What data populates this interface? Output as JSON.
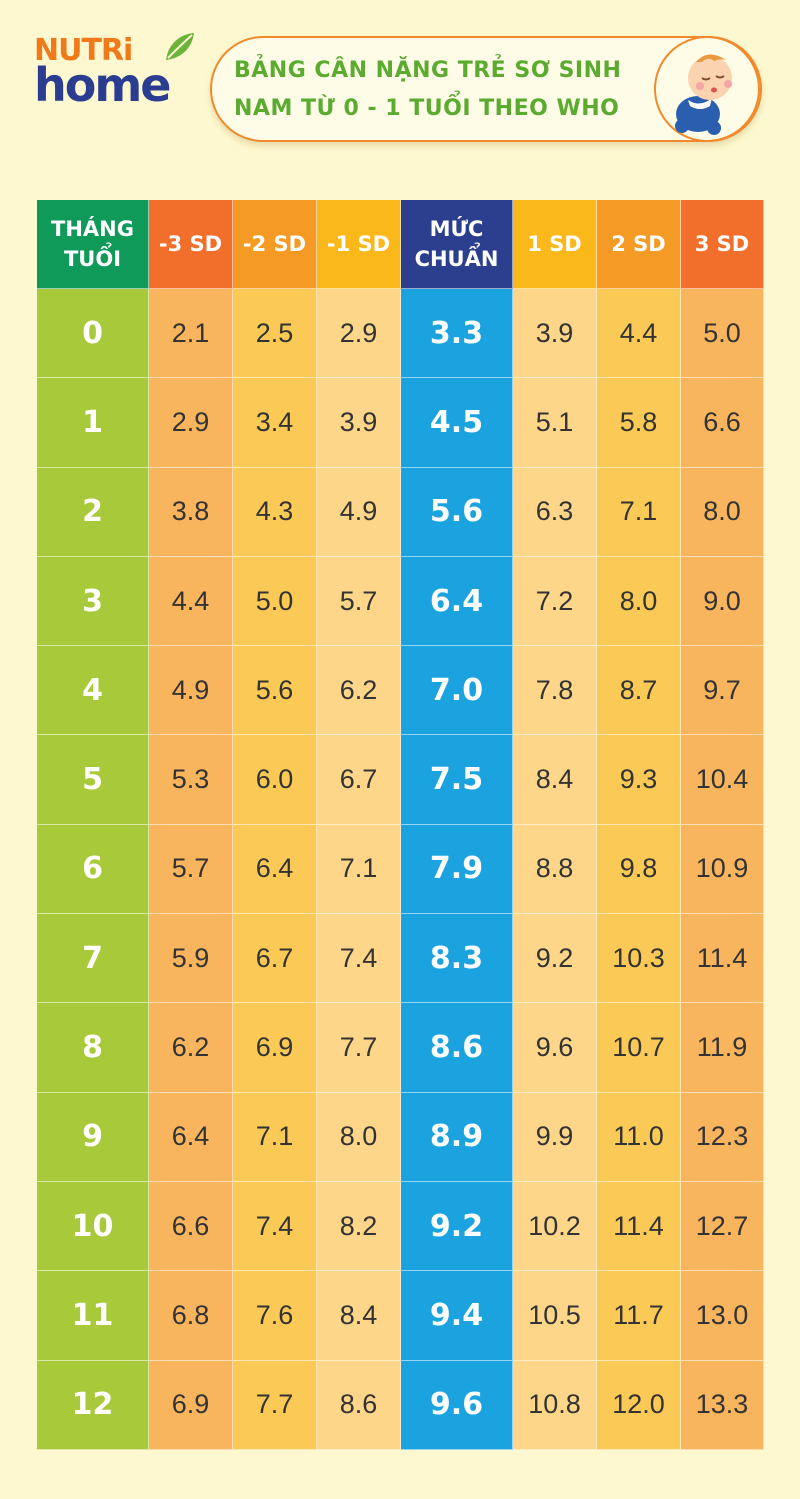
{
  "brand": {
    "line1": "NUTRi",
    "line2": "home",
    "colors": {
      "nutri": "#f07a1a",
      "home": "#2a3d91",
      "leaf": "#6bb33a"
    }
  },
  "title": {
    "line1": "BẢNG CÂN NẶNG TRẺ SƠ SINH",
    "line2": "NAM TỪ 0 - 1 TUỔI THEO WHO",
    "illustration": "sleeping-baby-icon"
  },
  "table": {
    "headers": [
      {
        "label": "THÁNG\nTUỔI",
        "color": "#0f9a5a"
      },
      {
        "label": "-3 SD",
        "color": "#f26f2b"
      },
      {
        "label": "-2 SD",
        "color": "#f59a24"
      },
      {
        "label": "-1 SD",
        "color": "#fbb81a"
      },
      {
        "label": "MỨC\nCHUẨN",
        "color": "#2c3f8f"
      },
      {
        "label": "1 SD",
        "color": "#fbb81a"
      },
      {
        "label": "2 SD",
        "color": "#f59a24"
      },
      {
        "label": "3 SD",
        "color": "#f26f2b"
      }
    ],
    "rows": [
      [
        "0",
        "2.1",
        "2.5",
        "2.9",
        "3.3",
        "3.9",
        "4.4",
        "5.0"
      ],
      [
        "1",
        "2.9",
        "3.4",
        "3.9",
        "4.5",
        "5.1",
        "5.8",
        "6.6"
      ],
      [
        "2",
        "3.8",
        "4.3",
        "4.9",
        "5.6",
        "6.3",
        "7.1",
        "8.0"
      ],
      [
        "3",
        "4.4",
        "5.0",
        "5.7",
        "6.4",
        "7.2",
        "8.0",
        "9.0"
      ],
      [
        "4",
        "4.9",
        "5.6",
        "6.2",
        "7.0",
        "7.8",
        "8.7",
        "9.7"
      ],
      [
        "5",
        "5.3",
        "6.0",
        "6.7",
        "7.5",
        "8.4",
        "9.3",
        "10.4"
      ],
      [
        "6",
        "5.7",
        "6.4",
        "7.1",
        "7.9",
        "8.8",
        "9.8",
        "10.9"
      ],
      [
        "7",
        "5.9",
        "6.7",
        "7.4",
        "8.3",
        "9.2",
        "10.3",
        "11.4"
      ],
      [
        "8",
        "6.2",
        "6.9",
        "7.7",
        "8.6",
        "9.6",
        "10.7",
        "11.9"
      ],
      [
        "9",
        "6.4",
        "7.1",
        "8.0",
        "8.9",
        "9.9",
        "11.0",
        "12.3"
      ],
      [
        "10",
        "6.6",
        "7.4",
        "8.2",
        "9.2",
        "10.2",
        "11.4",
        "12.7"
      ],
      [
        "11",
        "6.8",
        "7.6",
        "8.4",
        "9.4",
        "10.5",
        "11.7",
        "13.0"
      ],
      [
        "12",
        "6.9",
        "7.7",
        "8.6",
        "9.6",
        "10.8",
        "12.0",
        "13.3"
      ]
    ]
  }
}
